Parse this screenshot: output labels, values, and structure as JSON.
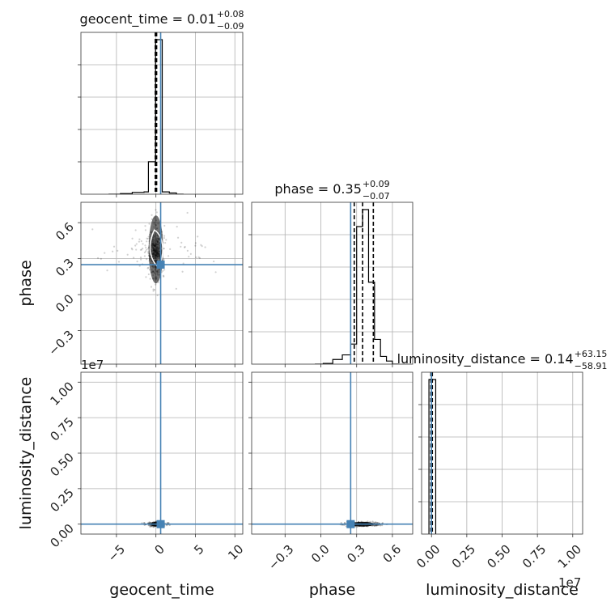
{
  "chart_data": {
    "type": "corner",
    "parameters": [
      "geocent_time",
      "phase",
      "luminosity_distance"
    ],
    "colors": {
      "truth": "#4682b4",
      "histogram": "#000000",
      "grid": "#b0b0b0",
      "scatter": "#000000"
    },
    "truths": {
      "geocent_time": 0.6,
      "phase": 0.25,
      "luminosity_distance": 0.0
    },
    "titles": [
      {
        "param": "geocent_time",
        "main": "geocent_time = 0.01",
        "plus": "+0.08",
        "minus": "−0.09"
      },
      {
        "param": "phase",
        "main": "phase = 0.35",
        "plus": "+0.09",
        "minus": "−0.07"
      },
      {
        "param": "luminosity_distance",
        "main": "luminosity_distance = 0.14",
        "plus": "+63.15",
        "minus": "−58.91"
      }
    ],
    "axis_labels": {
      "x": [
        "geocent_time",
        "phase",
        "luminosity_distance"
      ],
      "y": [
        "phase",
        "luminosity_distance"
      ]
    },
    "offset_labels": {
      "luminosity_distance_y": "1e7",
      "luminosity_distance_x": "1e7"
    },
    "ranges": {
      "geocent_time": [
        -9.5,
        11
      ],
      "phase": [
        -0.58,
        0.77
      ],
      "luminosity_distance": [
        -0.07,
        1.07
      ]
    },
    "ticks": {
      "geocent_time": [
        {
          "v": -5,
          "t": "−5"
        },
        {
          "v": 0,
          "t": "0"
        },
        {
          "v": 5,
          "t": "5"
        },
        {
          "v": 10,
          "t": "10"
        }
      ],
      "phase": [
        {
          "v": -0.3,
          "t": "−0.3"
        },
        {
          "v": 0.0,
          "t": "0.0"
        },
        {
          "v": 0.3,
          "t": "0.3"
        },
        {
          "v": 0.6,
          "t": "0.6"
        }
      ],
      "luminosity_distance": [
        {
          "v": 0.0,
          "t": "0.00"
        },
        {
          "v": 0.25,
          "t": "0.25"
        },
        {
          "v": 0.5,
          "t": "0.50"
        },
        {
          "v": 0.75,
          "t": "0.75"
        },
        {
          "v": 1.0,
          "t": "1.00"
        }
      ]
    },
    "diag_hist_grid_fractions": [
      0.2,
      0.4,
      0.6,
      0.8
    ],
    "histograms": {
      "geocent_time": {
        "edges": [
          -6,
          -4.5,
          -3,
          -1.5,
          -0.95,
          -0.05,
          0.8,
          1.7,
          2.6,
          3.5
        ],
        "heights": [
          0.0,
          0.004,
          0.012,
          0.015,
          0.21,
          1.0,
          0.015,
          0.008,
          0.0
        ]
      },
      "phase": {
        "edges": [
          -0.05,
          0.02,
          0.1,
          0.18,
          0.25,
          0.3,
          0.35,
          0.4,
          0.45,
          0.5,
          0.55,
          0.6,
          0.65
        ],
        "heights": [
          0.0,
          0.005,
          0.03,
          0.06,
          0.13,
          0.89,
          1.0,
          0.53,
          0.16,
          0.05,
          0.02,
          0.0
        ]
      },
      "luminosity_distance": {
        "edges": [
          -0.018,
          0.03
        ],
        "heights": [
          1.0
        ]
      }
    },
    "quantiles": {
      "geocent_time": [
        -0.08,
        0.01,
        0.09
      ],
      "phase": [
        0.28,
        0.35,
        0.44
      ],
      "luminosity_distance": [
        -0.004,
        0.0,
        0.006
      ]
    }
  }
}
